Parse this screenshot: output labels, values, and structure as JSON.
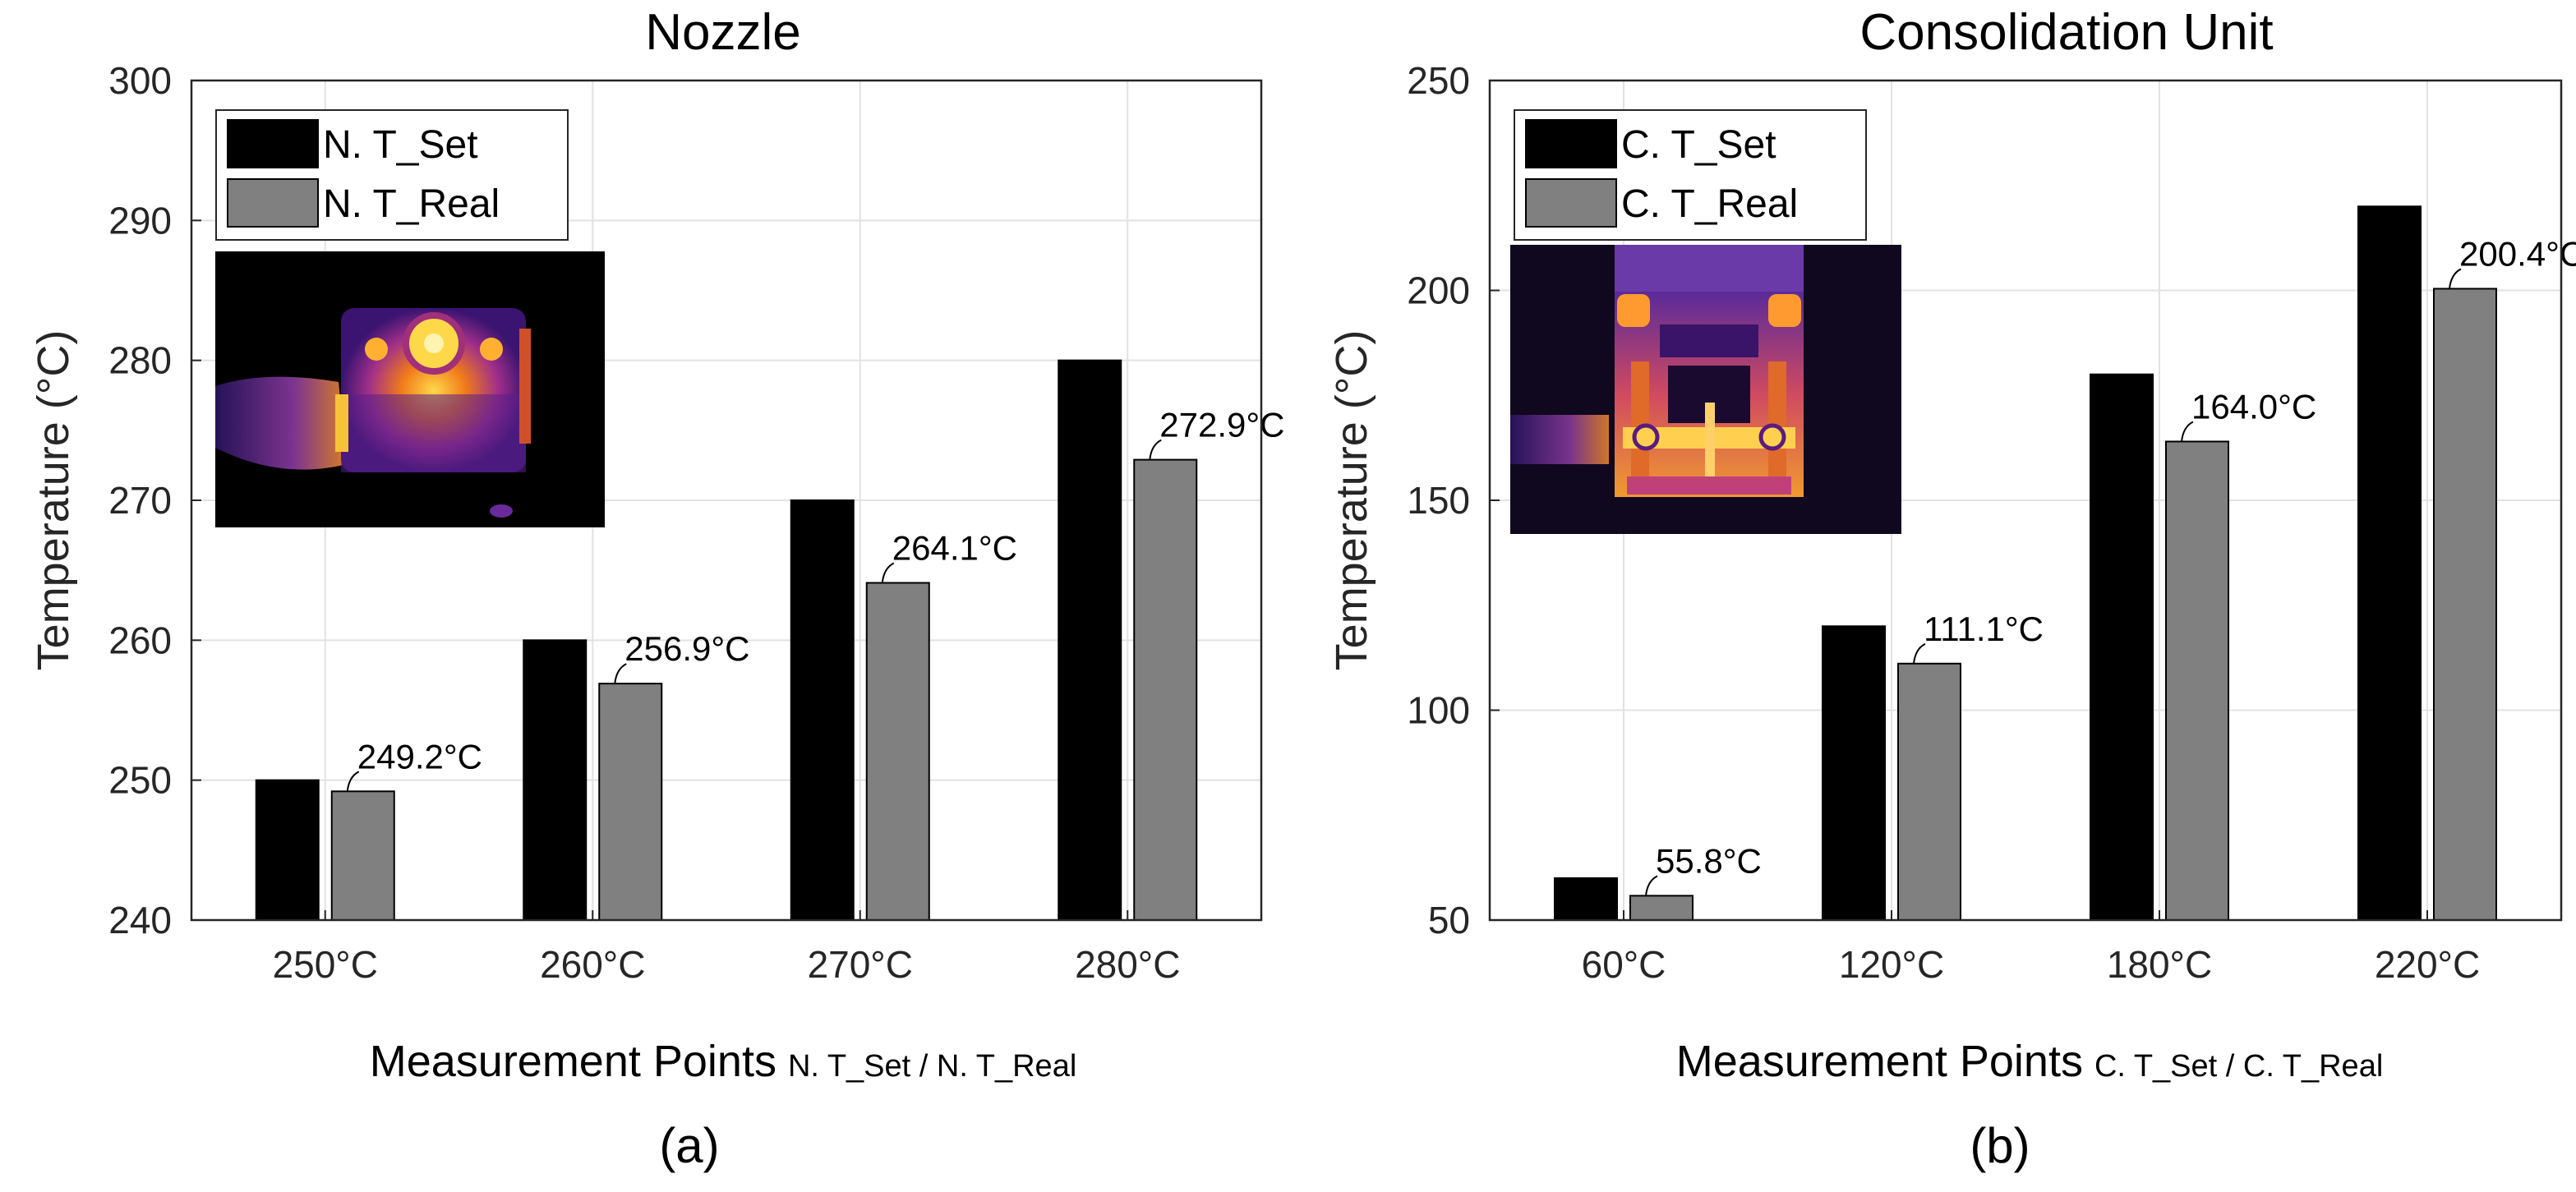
{
  "chart_data": [
    {
      "type": "bar",
      "panel_label": "(a)",
      "title": "Nozzle",
      "ylabel": "Temperature (°C)",
      "xlabel_main": "Measurement Points",
      "xlabel_sub": "N. T_Set / N. T_Real",
      "ylim": [
        240,
        300
      ],
      "yticks": [
        "240",
        "250",
        "260",
        "270",
        "280",
        "290",
        "300"
      ],
      "grid": true,
      "legend_position": "top-left",
      "categories": [
        "250°C",
        "260°C",
        "270°C",
        "280°C"
      ],
      "series": [
        {
          "name": "N. T_Set",
          "color": "#000000",
          "values": [
            250,
            260,
            270,
            280
          ]
        },
        {
          "name": "N. T_Real",
          "color": "#808080",
          "values": [
            249.2,
            256.9,
            264.1,
            272.9
          ]
        }
      ],
      "annotations": [
        "249.2°C",
        "256.9°C",
        "264.1°C",
        "272.9°C"
      ],
      "inset": "thermal image of nozzle"
    },
    {
      "type": "bar",
      "panel_label": "(b)",
      "title": "Consolidation Unit",
      "ylabel": "Temperature (°C)",
      "xlabel_main": "Measurement Points",
      "xlabel_sub": "C. T_Set / C. T_Real",
      "ylim": [
        50,
        250
      ],
      "yticks": [
        "50",
        "100",
        "150",
        "200",
        "250"
      ],
      "grid": true,
      "legend_position": "top-left",
      "categories": [
        "60°C",
        "120°C",
        "180°C",
        "220°C"
      ],
      "series": [
        {
          "name": "C. T_Set",
          "color": "#000000",
          "values": [
            60,
            120,
            180,
            220
          ]
        },
        {
          "name": "C. T_Real",
          "color": "#808080",
          "values": [
            55.8,
            111.1,
            164.0,
            200.4
          ]
        }
      ],
      "annotations": [
        "55.8°C",
        "111.1°C",
        "164.0°C",
        "200.4°C"
      ],
      "inset": "thermal image of consolidation unit"
    }
  ]
}
